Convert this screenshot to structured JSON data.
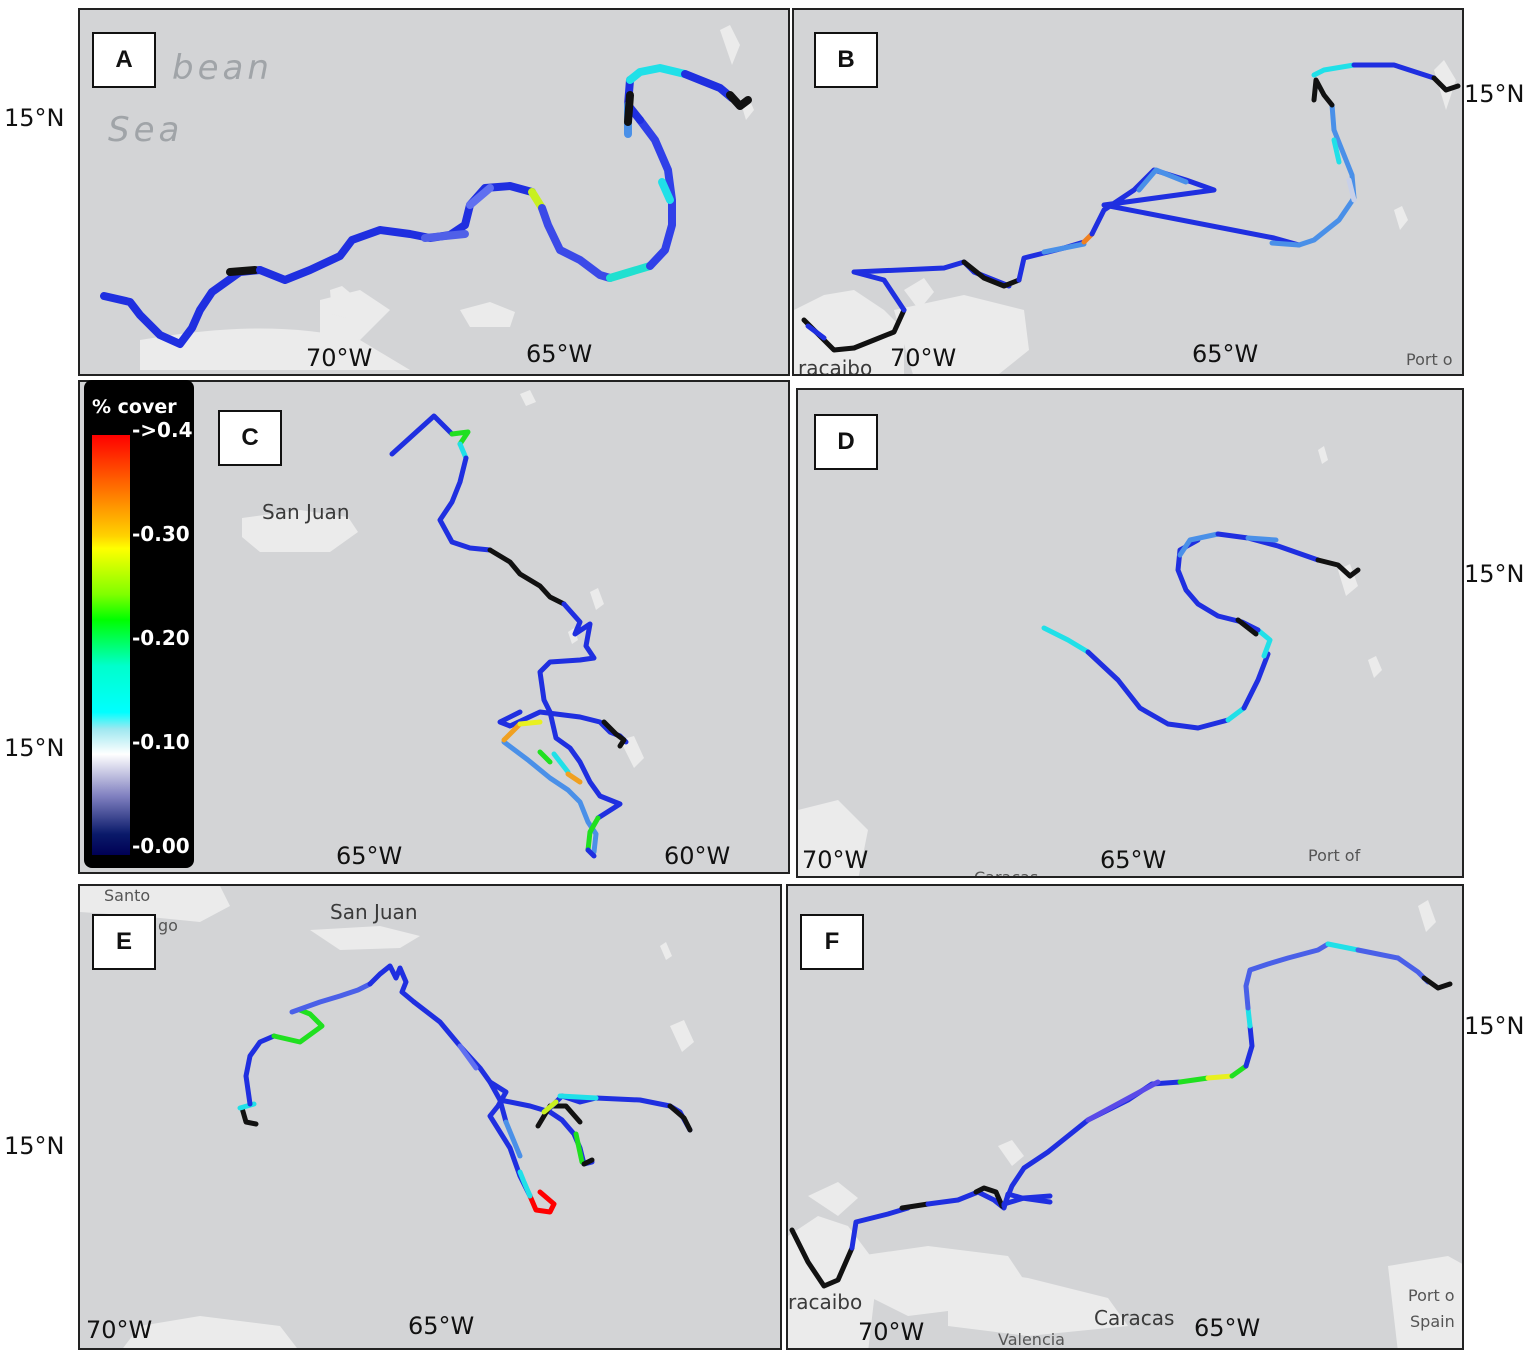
{
  "panels": [
    {
      "label": "A",
      "ticks": [
        "70°W",
        "65°W"
      ],
      "lat_tick": "15°N",
      "sea_name_1": "bean",
      "sea_name_2": "Sea",
      "places": []
    },
    {
      "label": "B",
      "ticks": [
        "70°W",
        "65°W"
      ],
      "lat_tick": "15°N",
      "places": [
        "racaibo",
        "Port o"
      ]
    },
    {
      "label": "C",
      "ticks": [
        "65°W",
        "60°W"
      ],
      "lat_tick": "15°N",
      "places": [
        "San Juan"
      ]
    },
    {
      "label": "D",
      "ticks": [
        "70°W",
        "65°W"
      ],
      "lat_tick": "15°N",
      "places": [
        "Caracas",
        "Port of"
      ]
    },
    {
      "label": "E",
      "ticks": [
        "70°W",
        "65°W"
      ],
      "lat_tick": "15°N",
      "places": [
        "Santo",
        "go",
        "San Juan"
      ]
    },
    {
      "label": "F",
      "ticks": [
        "70°W",
        "65°W"
      ],
      "lat_tick": "15°N",
      "places": [
        "racaibo",
        "Caracas",
        "Valencia",
        "Port o",
        "Spain"
      ]
    }
  ],
  "legend": {
    "title": "% cover",
    "ticks": [
      "->0.4",
      "-0.30",
      "-0.20",
      "-0.10",
      "-0.00"
    ]
  },
  "colors": {
    "blue": "#1f2fe0",
    "light_blue": "#4a90e8",
    "cyan": "#20e0e8",
    "green": "#20e020",
    "yellow": "#e8f020",
    "orange": "#f08020",
    "red": "#ff0000",
    "black": "#111111",
    "land": "#ebebeb",
    "sea": "#d3d4d6"
  }
}
